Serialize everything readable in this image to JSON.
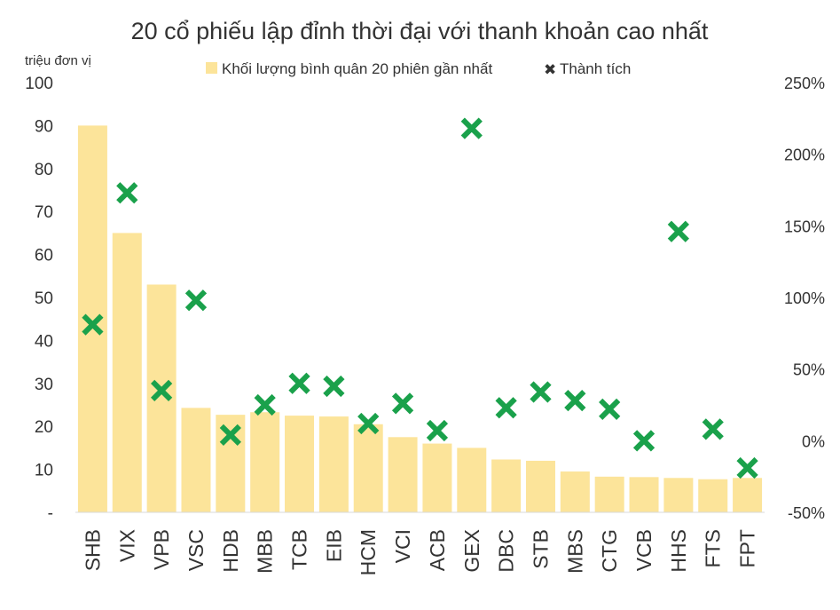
{
  "chart_data": {
    "type": "bar",
    "title": "20 cổ phiếu lập đỉnh thời đại với thanh khoản cao nhất",
    "left_axis_unit": "triệu đơn vị",
    "categories": [
      "SHB",
      "VIX",
      "VPB",
      "VSC",
      "HDB",
      "MBB",
      "TCB",
      "EIB",
      "HCM",
      "VCI",
      "ACB",
      "GEX",
      "DBC",
      "STB",
      "MBS",
      "CTG",
      "VCB",
      "HHS",
      "FTS",
      "FPT"
    ],
    "series": [
      {
        "name": "Khối lượng bình quân 20 phiên gần nhất",
        "type": "bar",
        "axis": "left",
        "color": "#FCE49A",
        "values": [
          90,
          65,
          53,
          24.3,
          22.7,
          23.3,
          22.5,
          22.3,
          20.5,
          17.5,
          16,
          15,
          12.3,
          12,
          9.5,
          8.3,
          8.2,
          8,
          7.7,
          8
        ]
      },
      {
        "name": "Thành tích",
        "type": "scatter",
        "axis": "right",
        "color": "#1AA14B",
        "values": [
          81,
          173,
          35,
          98,
          4,
          25,
          40,
          38,
          12,
          26,
          7,
          218,
          23,
          34,
          28,
          22,
          0,
          146,
          8,
          -19
        ]
      }
    ],
    "left_axis": {
      "ylim": [
        0,
        100
      ],
      "ticks": [
        0,
        10,
        20,
        30,
        40,
        50,
        60,
        70,
        80,
        90,
        100
      ],
      "tick_labels": [
        "-",
        "10",
        "20",
        "30",
        "40",
        "50",
        "60",
        "70",
        "80",
        "90",
        "100"
      ]
    },
    "right_axis": {
      "ylim": [
        -50,
        250
      ],
      "ticks": [
        -50,
        0,
        50,
        100,
        150,
        200,
        250
      ],
      "tick_labels": [
        "-50%",
        "0%",
        "50%",
        "100%",
        "150%",
        "200%",
        "250%"
      ]
    },
    "grid": false,
    "legend_position": "top-center"
  }
}
